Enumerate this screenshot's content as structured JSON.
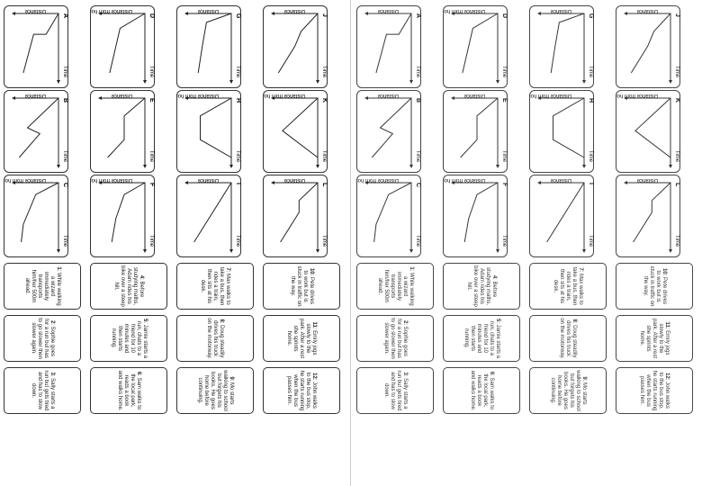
{
  "axis_labels": {
    "distance": "Distance",
    "distance_from_home": "Distance from home",
    "time": "Time"
  },
  "graph_letters": [
    "A",
    "B",
    "C",
    "D",
    "E",
    "F",
    "G",
    "H",
    "I",
    "J",
    "K",
    "L"
  ],
  "left_sheet": {
    "stories": [
      {
        "num": "1",
        "text": ": While walking a wizard immediately transports him/her 500m ahead."
      },
      {
        "num": "2",
        "text": ": Sophie goes for a run but has to go slower then slower again."
      },
      {
        "num": "3",
        "text": ": Sally starts a run but gets tired and has to slow down."
      },
      {
        "num": "4",
        "text": ": Before studying maths, Adam rides his bike over a steep hill."
      },
      {
        "num": "5",
        "text": ": Jamie starts a run, chats to a friend for 10 minutes and then starts running."
      },
      {
        "num": "6",
        "text": ": Sam walks to the local park, reads a book and walks home."
      },
      {
        "num": "7",
        "text": ": Max walks to take a bus, then rides a train, then sits at his desk."
      },
      {
        "num": "8",
        "text": ": Doug steadily drives his truck on the motorway."
      },
      {
        "num": "9",
        "text": ": Mo starts walking to school but forgets his books. He goes home before continuing."
      },
      {
        "num": "10",
        "text": ": Pete drives to work but is stuck in traffic on the way."
      },
      {
        "num": "11",
        "text": ": Emily jogs slowly to the park. After a rest she sprints home."
      },
      {
        "num": "12",
        "text": ": John walks to the bus stop, he starts running when the bus passes him."
      }
    ]
  },
  "right_sheet": {
    "stories": [
      {
        "num": "1",
        "text": ": While walking a wizard immediately transports him/her 500m ahead."
      },
      {
        "num": "2",
        "text": ": Sophie goes for a run but has to go slower then slower again."
      },
      {
        "num": "3",
        "text": ": Sally starts a run but gets tired and has to slow down."
      },
      {
        "num": "4",
        "text": ": Before studying maths, Adam rides his bike over a steep hill."
      },
      {
        "num": "5",
        "text": ": Jamie starts a run, chats to a friend for 10 minutes and then starts running."
      },
      {
        "num": "6",
        "text": ": Sam walks to the local park, reads a book and walks home."
      },
      {
        "num": "7",
        "text": ": Max walks to take a bus, then rides a train, then sits at his desk."
      },
      {
        "num": "8",
        "text": ": Doug steadily drives his truck on the motorway."
      },
      {
        "num": "9",
        "text": ": Mo starts walking to school but forgets his books. He goes home before continuing."
      },
      {
        "num": "10",
        "text": ": Pete drives to work but is stuck in traffic on the way."
      },
      {
        "num": "11",
        "text": ": Emily jogs slowly to the park. After a rest she sprints home."
      },
      {
        "num": "12",
        "text": ": John walks to the bus stop, he starts running when the bus passes him."
      }
    ]
  },
  "graph_y_label": [
    "distance",
    "distance",
    "distance_from_home",
    "distance_from_home",
    "distance",
    "distance_from_home",
    "distance",
    "distance_from_home",
    "distance",
    "distance",
    "distance_from_home",
    "distance"
  ]
}
